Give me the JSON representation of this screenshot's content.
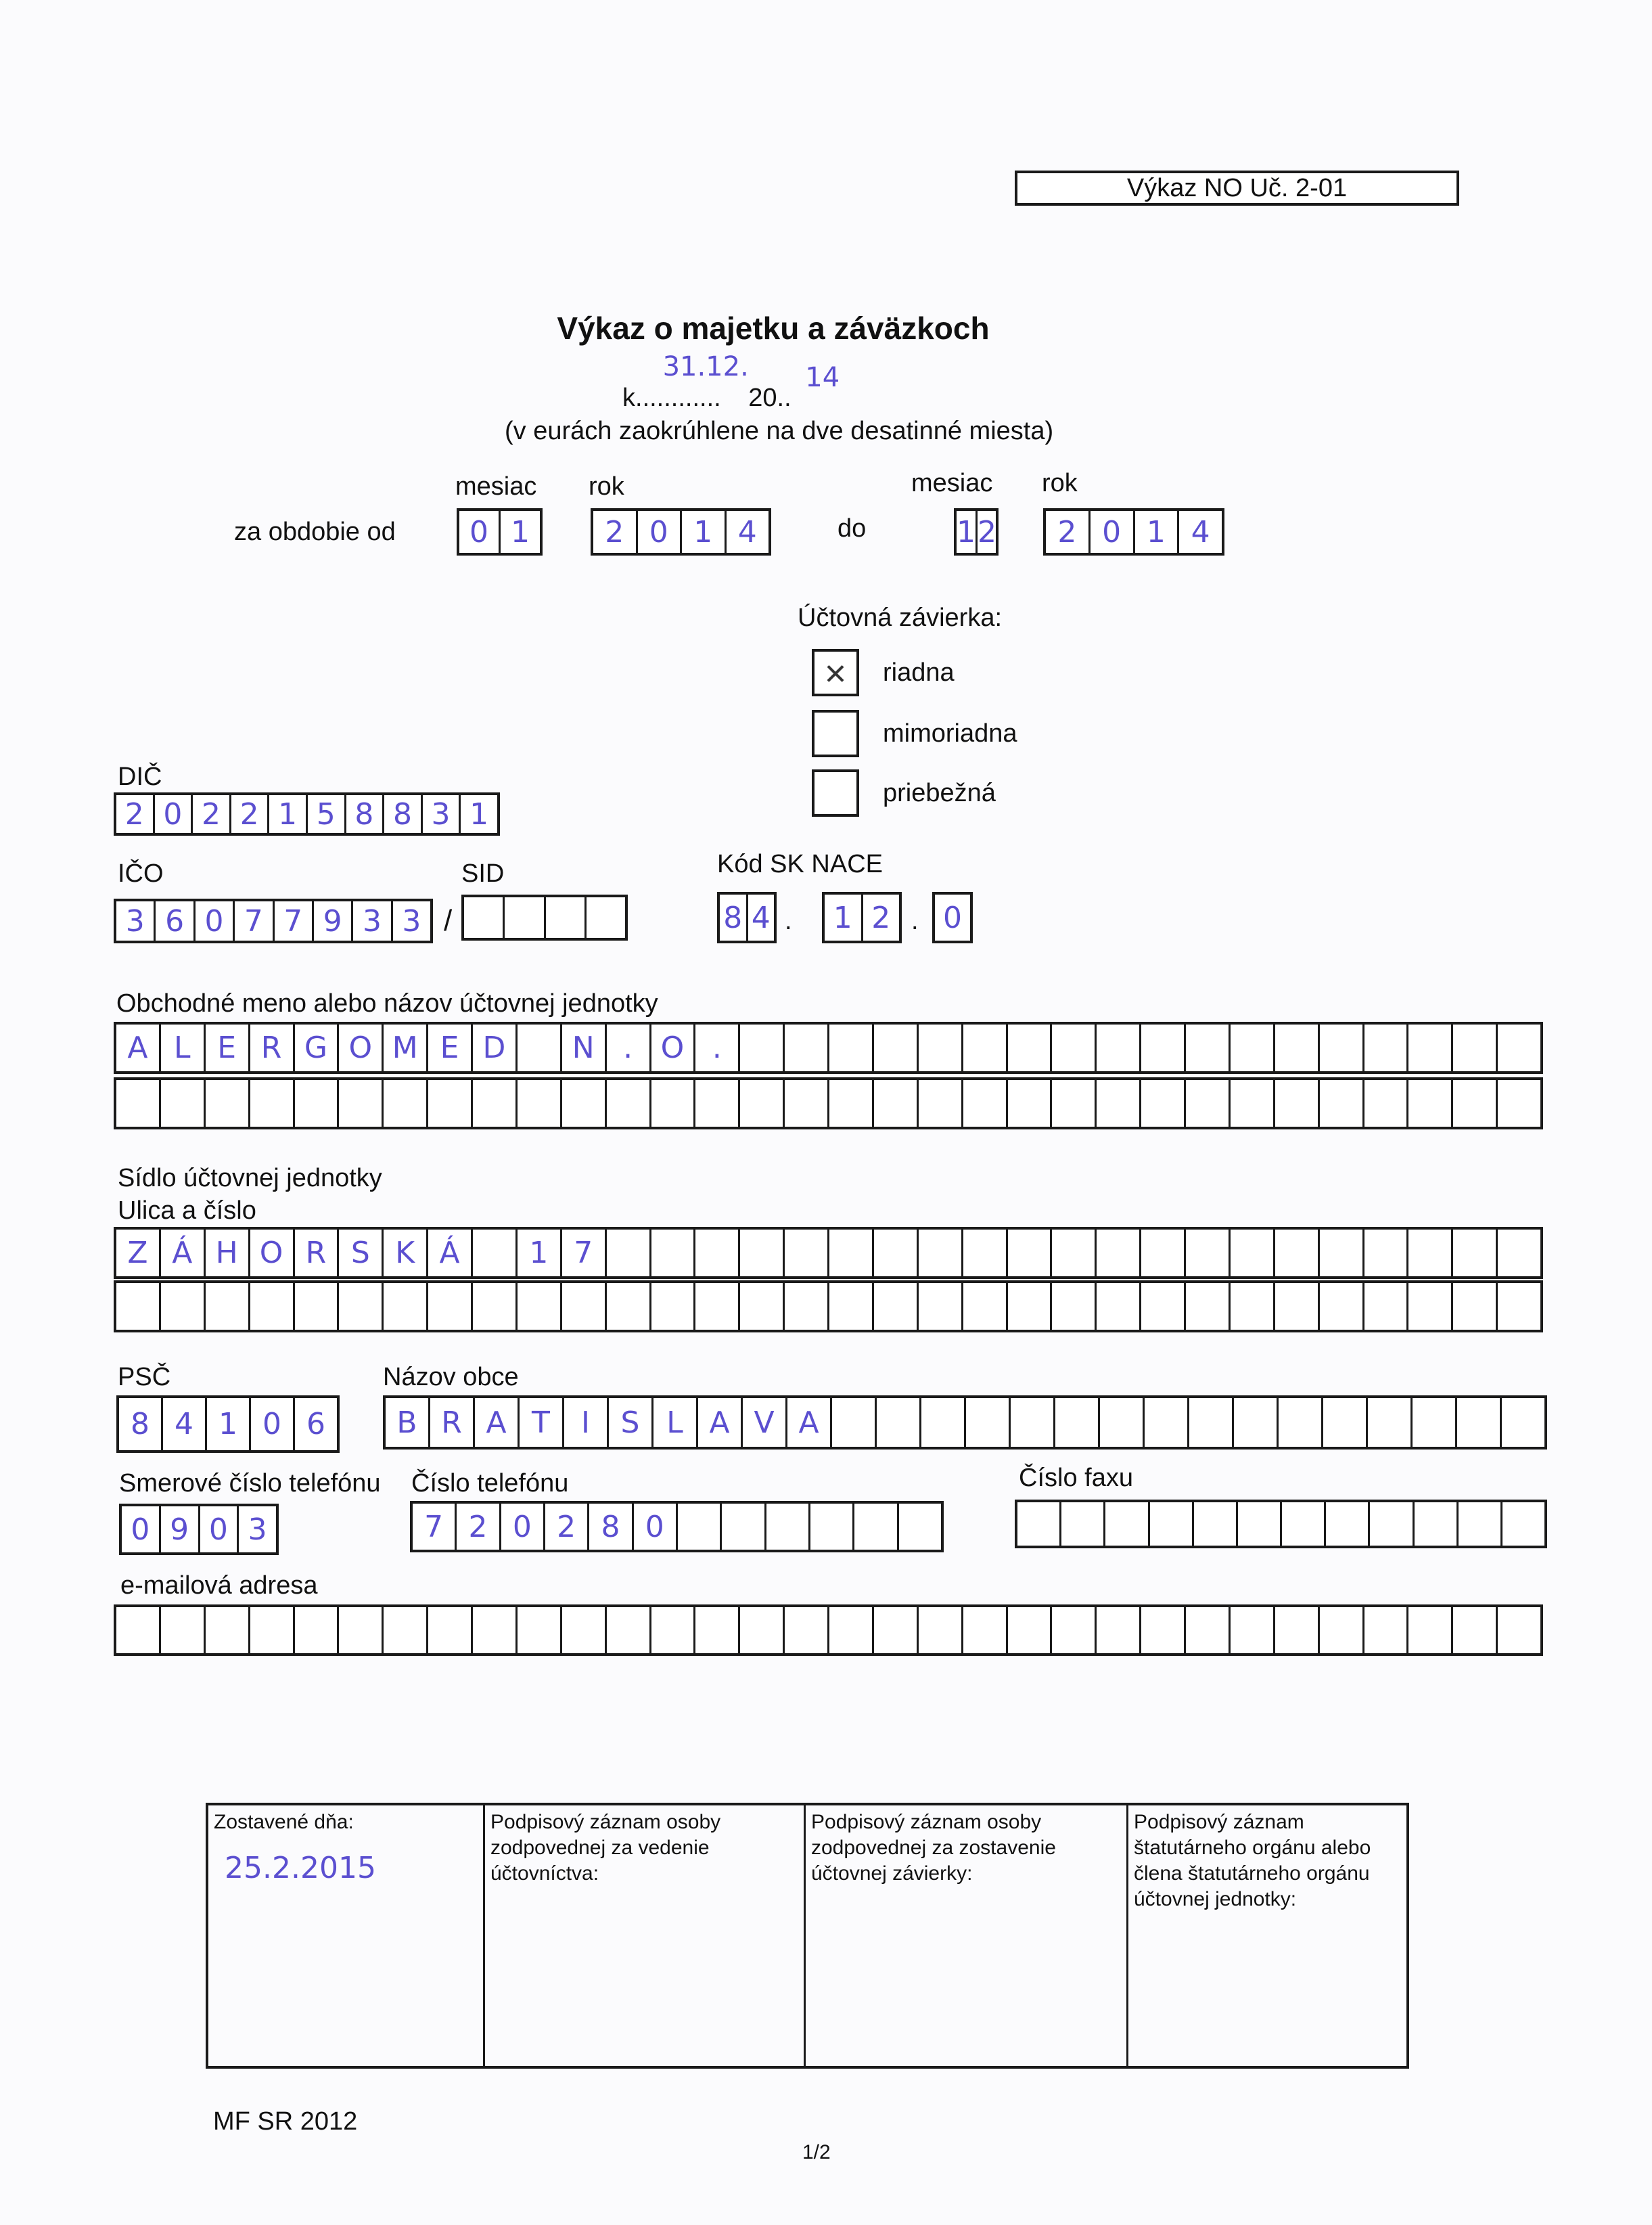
{
  "form_code": "Výkaz NO Uč. 2-01",
  "title": "Výkaz o majetku a záväzkoch",
  "date_line": {
    "prefix": "k.",
    "dots": "...........",
    "day_month": "31.12.",
    "year_prefix": "20..",
    "year_suffix": "14"
  },
  "subtitle": "(v eurách zaokrúhlene na dve desatinné miesta)",
  "period": {
    "label": "za obdobie od",
    "month_label": "mesiac",
    "year_label": "rok",
    "to_label": "do",
    "from_month": [
      "0",
      "1"
    ],
    "from_year": [
      "2",
      "0",
      "1",
      "4"
    ],
    "to_month": [
      "1",
      "2"
    ],
    "to_year": [
      "2",
      "0",
      "1",
      "4"
    ]
  },
  "closing": {
    "label": "Účtovná závierka:",
    "options": [
      {
        "label": "riadna",
        "checked": true,
        "mark": "×"
      },
      {
        "label": "mimoriadna",
        "checked": false,
        "mark": ""
      },
      {
        "label": "priebežná",
        "checked": false,
        "mark": ""
      }
    ]
  },
  "dic": {
    "label": "DIČ",
    "chars": [
      "2",
      "0",
      "2",
      "2",
      "1",
      "5",
      "8",
      "8",
      "3",
      "1"
    ]
  },
  "ico": {
    "label": "IČO",
    "chars": [
      "3",
      "6",
      "0",
      "7",
      "7",
      "9",
      "3",
      "3"
    ]
  },
  "sid": {
    "label": "SID",
    "separator": "/",
    "chars": [
      "",
      "",
      "",
      ""
    ]
  },
  "nace": {
    "label": "Kód SK NACE",
    "part1": [
      "8",
      "4"
    ],
    "part2": [
      "1",
      "2"
    ],
    "part3": [
      "0"
    ],
    "dot": "."
  },
  "name": {
    "label": "Obchodné meno alebo názov účtovnej jednotky",
    "row1": [
      "A",
      "L",
      "E",
      "R",
      "G",
      "O",
      "M",
      "E",
      "D",
      "",
      "N",
      ".",
      "O",
      ".",
      "",
      "",
      "",
      "",
      "",
      "",
      "",
      "",
      "",
      "",
      "",
      "",
      "",
      "",
      "",
      "",
      "",
      ""
    ],
    "row2": [
      "",
      "",
      "",
      "",
      "",
      "",
      "",
      "",
      "",
      "",
      "",
      "",
      "",
      "",
      "",
      "",
      "",
      "",
      "",
      "",
      "",
      "",
      "",
      "",
      "",
      "",
      "",
      "",
      "",
      "",
      "",
      ""
    ]
  },
  "seat": {
    "label": "Sídlo účtovnej jednotky",
    "street_label": "Ulica a číslo",
    "row1": [
      "Z",
      "Á",
      "H",
      "O",
      "R",
      "S",
      "K",
      "Á",
      "",
      "1",
      "7",
      "",
      "",
      "",
      "",
      "",
      "",
      "",
      "",
      "",
      "",
      "",
      "",
      "",
      "",
      "",
      "",
      "",
      "",
      "",
      "",
      ""
    ],
    "row2": [
      "",
      "",
      "",
      "",
      "",
      "",
      "",
      "",
      "",
      "",
      "",
      "",
      "",
      "",
      "",
      "",
      "",
      "",
      "",
      "",
      "",
      "",
      "",
      "",
      "",
      "",
      "",
      "",
      "",
      "",
      "",
      ""
    ]
  },
  "psc": {
    "label": "PSČ",
    "chars": [
      "8",
      "4",
      "1",
      "0",
      "6"
    ]
  },
  "city": {
    "label": "Názov obce",
    "chars": [
      "B",
      "R",
      "A",
      "T",
      "I",
      "S",
      "L",
      "A",
      "V",
      "A",
      "",
      "",
      "",
      "",
      "",
      "",
      "",
      "",
      "",
      "",
      "",
      "",
      "",
      "",
      "",
      ""
    ]
  },
  "phone_prefix": {
    "label": "Smerové číslo telefónu",
    "chars": [
      "0",
      "9",
      "0",
      "3"
    ]
  },
  "phone": {
    "label": "Číslo telefónu",
    "chars": [
      "7",
      "2",
      "0",
      "2",
      "8",
      "0",
      "",
      "",
      "",
      "",
      "",
      ""
    ]
  },
  "fax": {
    "label": "Číslo faxu",
    "chars": [
      "",
      "",
      "",
      "",
      "",
      "",
      "",
      "",
      "",
      "",
      "",
      ""
    ]
  },
  "email": {
    "label": "e-mailová adresa",
    "chars": [
      "",
      "",
      "",
      "",
      "",
      "",
      "",
      "",
      "",
      "",
      "",
      "",
      "",
      "",
      "",
      "",
      "",
      "",
      "",
      "",
      "",
      "",
      "",
      "",
      "",
      "",
      "",
      "",
      "",
      "",
      "",
      ""
    ]
  },
  "signatures": {
    "prepared_label": "Zostavené dňa:",
    "prepared_date": "25.2.2015",
    "col2": "Podpisový záznam osoby zodpovednej za vedenie účtovníctva:",
    "col3": "Podpisový záznam osoby zodpovednej za zostavenie účtovnej závierky:",
    "col4": "Podpisový záznam štatutárneho orgánu alebo člena štatutárneho orgánu účtovnej jednotky:"
  },
  "footer": {
    "left": "MF SR 2012",
    "page": "1/2"
  }
}
